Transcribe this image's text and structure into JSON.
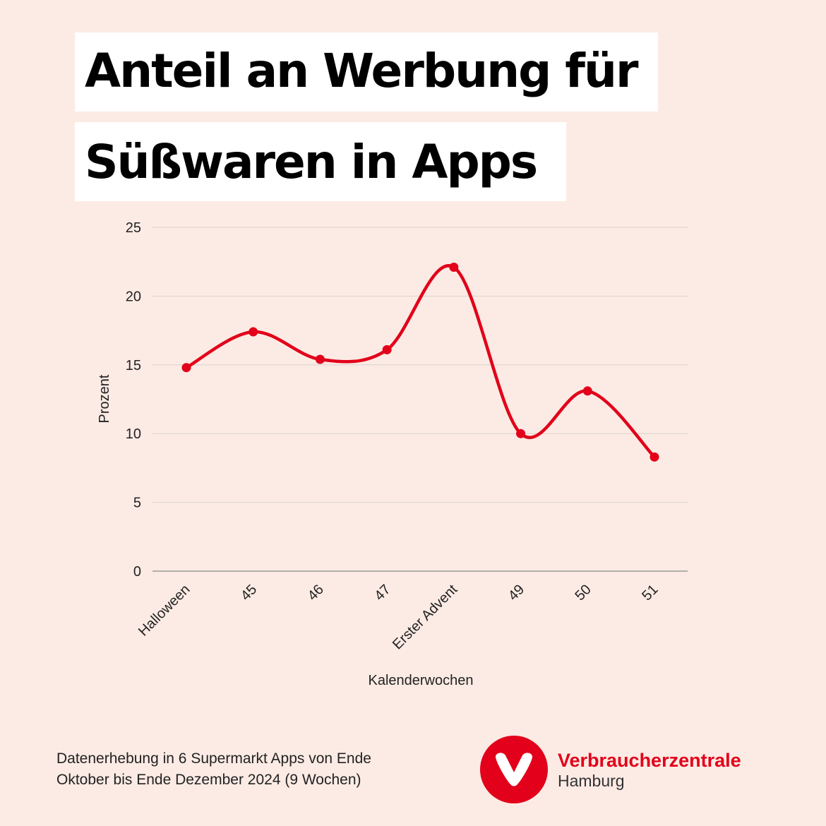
{
  "title": {
    "line1": "Anteil an Werbung für",
    "line2": "Süßwaren in Apps"
  },
  "chart_data": {
    "type": "line",
    "categories": [
      "Halloween",
      "45",
      "46",
      "47",
      "Erster Advent",
      "49",
      "50",
      "51"
    ],
    "series": [
      {
        "values": [
          14.8,
          17.4,
          15.4,
          16.1,
          22.1,
          10.0,
          13.1,
          8.3
        ]
      }
    ],
    "xlabel": "Kalenderwochen",
    "ylabel": "Prozent",
    "ylim": [
      0,
      25
    ],
    "yticks": [
      0,
      5,
      10,
      15,
      20,
      25
    ],
    "grid": true,
    "line_color": "#e2001a"
  },
  "footnote": {
    "line1": "Datenerhebung in 6 Supermarkt Apps von Ende",
    "line2": "Oktober bis Ende Dezember 2024 (9 Wochen)"
  },
  "brand": {
    "name": "Verbraucherzentrale",
    "city": "Hamburg",
    "logo_icon": "v-heart-logo-icon",
    "color": "#e2001a"
  }
}
